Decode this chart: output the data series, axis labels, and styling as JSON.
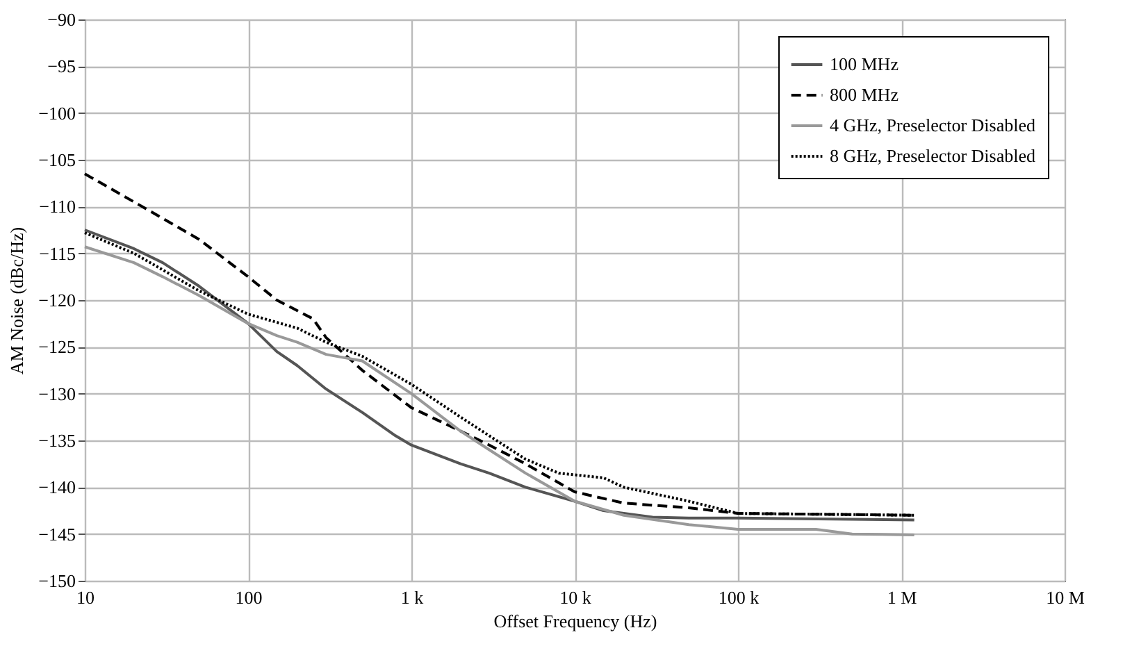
{
  "chart_data": {
    "type": "line",
    "xlabel": "Offset Frequency (Hz)",
    "ylabel": "AM Noise (dBc/Hz)",
    "log": "x",
    "grid": true,
    "legend": "top right",
    "xlim": [
      10,
      10000000
    ],
    "xticks": [
      {
        "value": 10,
        "label": "10"
      },
      {
        "value": 100,
        "label": "100"
      },
      {
        "value": 1000,
        "label": "1 k"
      },
      {
        "value": 10000,
        "label": "10 k"
      },
      {
        "value": 100000,
        "label": "100 k"
      },
      {
        "value": 1000000,
        "label": "1 M"
      },
      {
        "value": 10000000,
        "label": "10 M"
      }
    ],
    "ylim": [
      -150,
      -90
    ],
    "yticks": [
      {
        "value": -150,
        "label": "−150"
      },
      {
        "value": -145,
        "label": "−145"
      },
      {
        "value": -140,
        "label": "−140"
      },
      {
        "value": -135,
        "label": "−135"
      },
      {
        "value": -130,
        "label": "−130"
      },
      {
        "value": -125,
        "label": "−125"
      },
      {
        "value": -120,
        "label": "−120"
      },
      {
        "value": -115,
        "label": "−115"
      },
      {
        "value": -110,
        "label": "−110"
      },
      {
        "value": -105,
        "label": "−105"
      },
      {
        "value": -100,
        "label": "−100"
      },
      {
        "value": -95,
        "label": "−95"
      },
      {
        "value": -90,
        "label": "−90"
      }
    ],
    "series": [
      {
        "name": "100 MHz",
        "color": "#555555",
        "line_style": "solid",
        "x": [
          10,
          20,
          30,
          50,
          100,
          150,
          200,
          300,
          500,
          800,
          1000,
          2000,
          3000,
          5000,
          10000,
          15000,
          20000,
          30000,
          50000,
          100000,
          1200000
        ],
        "values": [
          -112.5,
          -114.5,
          -116,
          -118.5,
          -122.5,
          -125.5,
          -127,
          -129.5,
          -132,
          -134.5,
          -135.5,
          -137.5,
          -138.5,
          -140,
          -141.5,
          -142.5,
          -142.8,
          -143.2,
          -143.3,
          -143.3,
          -143.5
        ]
      },
      {
        "name": "800 MHz",
        "color": "#000000",
        "line_style": "dashed",
        "x": [
          10,
          20,
          50,
          100,
          150,
          250,
          300,
          500,
          1000,
          2000,
          3000,
          5000,
          10000,
          20000,
          50000,
          100000,
          1200000
        ],
        "values": [
          -106.5,
          -109.5,
          -113.5,
          -117.5,
          -120,
          -122,
          -124,
          -127.5,
          -131.5,
          -134,
          -135.5,
          -137.5,
          -140.5,
          -141.7,
          -142.2,
          -142.8,
          -143
        ]
      },
      {
        "name": "4 GHz, Preselector Disabled",
        "color": "#999999",
        "line_style": "solid",
        "x": [
          10,
          20,
          30,
          50,
          100,
          150,
          200,
          300,
          500,
          1000,
          2000,
          3000,
          5000,
          10000,
          20000,
          50000,
          100000,
          300000,
          500000,
          1200000
        ],
        "values": [
          -114.3,
          -116,
          -117.5,
          -119.5,
          -122.5,
          -123.8,
          -124.5,
          -125.8,
          -126.5,
          -130,
          -134,
          -136,
          -138.5,
          -141.5,
          -143,
          -144,
          -144.5,
          -144.5,
          -145,
          -145.1
        ]
      },
      {
        "name": "8 GHz, Preselector Disabled",
        "color": "#000000",
        "line_style": "dotted",
        "x": [
          10,
          20,
          50,
          100,
          200,
          300,
          500,
          1000,
          2000,
          3000,
          5000,
          8000,
          15000,
          20000,
          50000,
          100000,
          1200000
        ],
        "values": [
          -112.8,
          -115,
          -119,
          -121.5,
          -123,
          -124.5,
          -126,
          -129,
          -132.5,
          -134.5,
          -137,
          -138.5,
          -139,
          -140,
          -141.5,
          -142.8,
          -143
        ]
      }
    ]
  }
}
